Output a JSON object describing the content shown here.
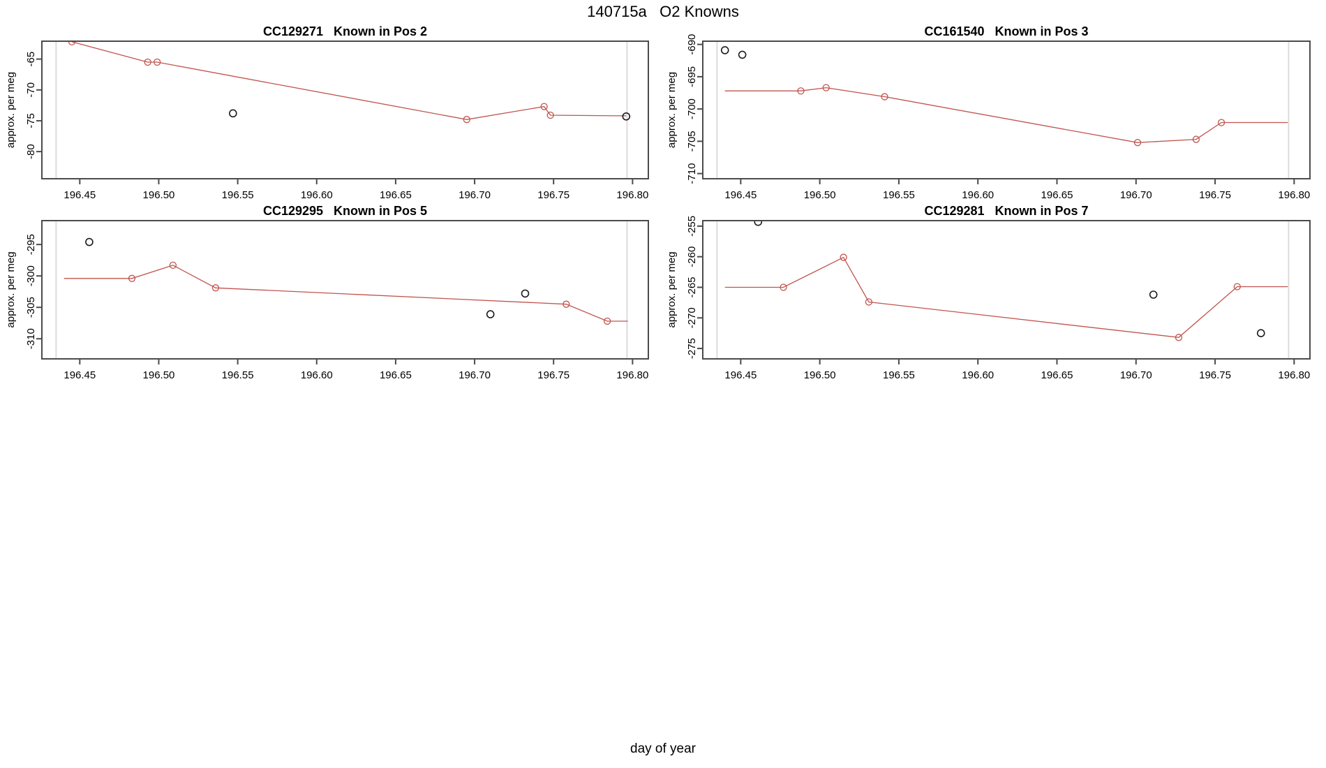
{
  "title": "140715a   O2 Knowns",
  "xlabel": "day of year",
  "ylabel": "approx. per meg",
  "colors": {
    "series": "#c0544e",
    "outlier": "#1c1c1c",
    "frame": "#4b4b4b",
    "reference_line": "#dcdcdc",
    "text": "#000000"
  },
  "chart_data": [
    {
      "type": "line",
      "title": "CC129271   Known in Pos 2",
      "sample_id": "CC129271",
      "position_label": "Known in Pos 2",
      "grid_position": "top-left",
      "xlim": [
        196.426,
        196.81
      ],
      "ylim": [
        -84.4,
        -62.1
      ],
      "xticks": [
        196.45,
        196.5,
        196.55,
        196.6,
        196.65,
        196.7,
        196.75,
        196.8
      ],
      "yticks": [
        -65,
        -70,
        -75,
        -80
      ],
      "reference_vlines_x": [
        196.435,
        196.7965
      ],
      "marker": "open-circle",
      "grid": false,
      "red_line": [
        [
          196.445,
          -62.2
        ],
        [
          196.493,
          -65.5
        ],
        [
          196.499,
          -65.5
        ],
        [
          196.695,
          -74.8
        ],
        [
          196.744,
          -72.7
        ],
        [
          196.748,
          -74.1
        ],
        [
          196.796,
          -74.2
        ]
      ],
      "red_markers": [
        [
          196.445,
          -62.2
        ],
        [
          196.493,
          -65.5
        ],
        [
          196.499,
          -65.5
        ],
        [
          196.695,
          -74.8
        ],
        [
          196.744,
          -72.7
        ],
        [
          196.748,
          -74.1
        ]
      ],
      "black_markers": [
        [
          196.547,
          -73.8
        ],
        [
          196.796,
          -74.3
        ]
      ]
    },
    {
      "type": "line",
      "title": "CC161540   Known in Pos 3",
      "sample_id": "CC161540",
      "position_label": "Known in Pos 3",
      "grid_position": "top-right",
      "xlim": [
        196.426,
        196.81
      ],
      "ylim": [
        -710.8,
        -689.5
      ],
      "xticks": [
        196.45,
        196.5,
        196.55,
        196.6,
        196.65,
        196.7,
        196.75,
        196.8
      ],
      "yticks": [
        -690,
        -695,
        -700,
        -705,
        -710
      ],
      "reference_vlines_x": [
        196.435,
        196.7965
      ],
      "marker": "open-circle",
      "grid": false,
      "red_line": [
        [
          196.44,
          -697.2
        ],
        [
          196.488,
          -697.2
        ],
        [
          196.504,
          -696.7
        ],
        [
          196.541,
          -698.1
        ],
        [
          196.701,
          -705.2
        ],
        [
          196.738,
          -704.7
        ],
        [
          196.754,
          -702.1
        ],
        [
          196.796,
          -702.1
        ]
      ],
      "red_markers": [
        [
          196.488,
          -697.2
        ],
        [
          196.504,
          -696.7
        ],
        [
          196.541,
          -698.1
        ],
        [
          196.701,
          -705.2
        ],
        [
          196.738,
          -704.7
        ],
        [
          196.754,
          -702.1
        ]
      ],
      "black_markers": [
        [
          196.44,
          -690.9
        ],
        [
          196.451,
          -691.6
        ]
      ]
    },
    {
      "type": "line",
      "title": "CC129295   Known in Pos 5",
      "sample_id": "CC129295",
      "position_label": "Known in Pos 5",
      "grid_position": "bottom-left",
      "xlim": [
        196.426,
        196.81
      ],
      "ylim": [
        -313.2,
        -291.2
      ],
      "xticks": [
        196.45,
        196.5,
        196.55,
        196.6,
        196.65,
        196.7,
        196.75,
        196.8
      ],
      "yticks": [
        -295,
        -300,
        -305,
        -310
      ],
      "reference_vlines_x": [
        196.435,
        196.7965
      ],
      "marker": "open-circle",
      "grid": false,
      "red_line": [
        [
          196.44,
          -300.4
        ],
        [
          196.483,
          -300.4
        ],
        [
          196.509,
          -298.3
        ],
        [
          196.536,
          -301.9
        ],
        [
          196.758,
          -304.5
        ],
        [
          196.784,
          -307.2
        ],
        [
          196.797,
          -307.2
        ]
      ],
      "red_markers": [
        [
          196.483,
          -300.4
        ],
        [
          196.509,
          -298.3
        ],
        [
          196.536,
          -301.9
        ],
        [
          196.758,
          -304.5
        ],
        [
          196.784,
          -307.2
        ]
      ],
      "black_markers": [
        [
          196.456,
          -294.6
        ],
        [
          196.71,
          -306.1
        ],
        [
          196.732,
          -302.8
        ]
      ]
    },
    {
      "type": "line",
      "title": "CC129281   Known in Pos 7",
      "sample_id": "CC129281",
      "position_label": "Known in Pos 7",
      "grid_position": "bottom-right",
      "xlim": [
        196.426,
        196.81
      ],
      "ylim": [
        -276.7,
        -254.1
      ],
      "xticks": [
        196.45,
        196.5,
        196.55,
        196.6,
        196.65,
        196.7,
        196.75,
        196.8
      ],
      "yticks": [
        -255,
        -260,
        -265,
        -270,
        -275
      ],
      "reference_vlines_x": [
        196.435,
        196.7965
      ],
      "marker": "open-circle",
      "grid": false,
      "red_line": [
        [
          196.44,
          -265.0
        ],
        [
          196.477,
          -265.0
        ],
        [
          196.515,
          -260.1
        ],
        [
          196.531,
          -267.4
        ],
        [
          196.727,
          -273.2
        ],
        [
          196.764,
          -264.9
        ],
        [
          196.796,
          -264.9
        ]
      ],
      "red_markers": [
        [
          196.477,
          -265.0
        ],
        [
          196.515,
          -260.1
        ],
        [
          196.531,
          -267.4
        ],
        [
          196.727,
          -273.2
        ],
        [
          196.764,
          -264.9
        ]
      ],
      "black_markers": [
        [
          196.461,
          -254.3
        ],
        [
          196.711,
          -266.2
        ],
        [
          196.779,
          -272.5
        ]
      ]
    }
  ]
}
